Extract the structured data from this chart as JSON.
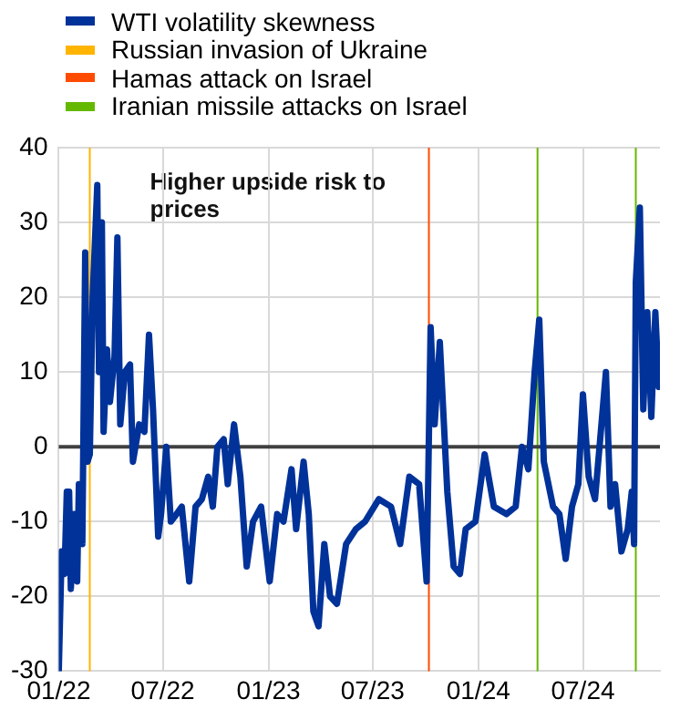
{
  "chart_data": {
    "type": "line",
    "annotations": [
      "Higher upside risk to prices"
    ],
    "x": [
      "2022-01-01",
      "2022-01-06",
      "2022-01-11",
      "2022-01-15",
      "2022-01-19",
      "2022-01-22",
      "2022-01-28",
      "2022-02-02",
      "2022-02-05",
      "2022-02-11",
      "2022-02-16",
      "2022-02-20",
      "2022-02-24",
      "2022-03-01",
      "2022-03-09",
      "2022-03-12",
      "2022-03-17",
      "2022-03-20",
      "2022-03-26",
      "2022-03-31",
      "2022-04-08",
      "2022-04-13",
      "2022-04-18",
      "2022-04-26",
      "2022-05-05",
      "2022-05-10",
      "2022-05-21",
      "2022-05-30",
      "2022-06-07",
      "2022-06-14",
      "2022-06-23",
      "2022-06-28",
      "2022-07-07",
      "2022-07-15",
      "2022-07-25",
      "2022-08-03",
      "2022-08-16",
      "2022-08-27",
      "2022-09-07",
      "2022-09-18",
      "2022-09-26",
      "2022-10-04",
      "2022-10-15",
      "2022-10-22",
      "2022-11-02",
      "2022-11-13",
      "2022-11-24",
      "2022-12-05",
      "2022-12-19",
      "2023-01-03",
      "2023-01-16",
      "2023-01-27",
      "2023-02-10",
      "2023-02-18",
      "2023-03-03",
      "2023-03-12",
      "2023-03-20",
      "2023-03-29",
      "2023-04-08",
      "2023-04-18",
      "2023-04-30",
      "2023-05-16",
      "2023-06-02",
      "2023-06-18",
      "2023-07-12",
      "2023-08-02",
      "2023-08-18",
      "2023-09-03",
      "2023-09-20",
      "2023-10-03",
      "2023-10-10",
      "2023-10-17",
      "2023-10-26",
      "2023-11-08",
      "2023-11-19",
      "2023-11-30",
      "2023-12-10",
      "2023-12-27",
      "2024-01-12",
      "2024-01-28",
      "2024-02-19",
      "2024-03-06",
      "2024-03-17",
      "2024-03-28",
      "2024-04-08",
      "2024-04-16",
      "2024-04-24",
      "2024-05-10",
      "2024-05-21",
      "2024-06-01",
      "2024-06-12",
      "2024-06-23",
      "2024-07-01",
      "2024-07-11",
      "2024-07-22",
      "2024-07-31",
      "2024-08-10",
      "2024-08-18",
      "2024-08-26",
      "2024-09-06",
      "2024-09-17",
      "2024-09-24",
      "2024-09-28",
      "2024-10-01",
      "2024-10-08",
      "2024-10-14",
      "2024-10-21",
      "2024-10-28",
      "2024-11-04",
      "2024-11-10"
    ],
    "series": [
      {
        "name": "WTI volatility skewness",
        "color": "#003299",
        "values": [
          -30,
          -14,
          -17,
          -6,
          -6,
          -19,
          -9,
          -18,
          -5,
          -13,
          26,
          -2,
          -1,
          20,
          35,
          10,
          30,
          2,
          13,
          6,
          12,
          28,
          3,
          10,
          11,
          -2,
          3,
          2,
          15,
          5,
          -12,
          -9,
          0,
          -10,
          -9,
          -8,
          -18,
          -8,
          -7,
          -4,
          -8,
          0,
          1,
          -5,
          3,
          -4,
          -16,
          -10,
          -8,
          -18,
          -9,
          -10,
          -3,
          -11,
          -2,
          -9,
          -22,
          -24,
          -13,
          -20,
          -21,
          -13,
          -11,
          -10,
          -7,
          -8,
          -13,
          -4,
          -5,
          -18,
          16,
          3,
          14,
          -6,
          -16,
          -17,
          -11,
          -10,
          -1,
          -8,
          -9,
          -8,
          0,
          -3,
          10,
          17,
          -2,
          -8,
          -9,
          -15,
          -8,
          -5,
          7,
          -4,
          -7,
          1,
          10,
          -8,
          -5,
          -14,
          -11,
          -6,
          -13,
          22,
          32,
          5,
          18,
          4,
          18,
          8
        ]
      }
    ],
    "ref_lines": [
      {
        "axis": "x",
        "value": "2022-02-24",
        "label": "Russian invasion of Ukraine",
        "color": "#ffb400"
      },
      {
        "axis": "x",
        "value": "2023-10-07",
        "label": "Hamas attack on Israel",
        "color": "#ff4b00"
      },
      {
        "axis": "x",
        "value": "2024-04-13",
        "label": "Iranian missile attacks on Israel",
        "color": "#65b800"
      },
      {
        "axis": "x",
        "value": "2024-10-01",
        "color": "#65b800"
      },
      {
        "axis": "y",
        "value": 0,
        "color": "#404040"
      }
    ],
    "xlim": [
      "2022-01-01",
      "2024-11-12"
    ],
    "xticks": [
      {
        "value": "2022-01-01",
        "label": "01/22"
      },
      {
        "value": "2022-07-01",
        "label": "07/22"
      },
      {
        "value": "2023-01-01",
        "label": "01/23"
      },
      {
        "value": "2023-07-01",
        "label": "07/23"
      },
      {
        "value": "2024-01-01",
        "label": "01/24"
      },
      {
        "value": "2024-07-01",
        "label": "07/24"
      }
    ],
    "ylim": [
      -30,
      40
    ],
    "yticks": [
      -30,
      -20,
      -10,
      0,
      10,
      20,
      30,
      40
    ],
    "grid": true,
    "legend": "top",
    "marker": "none",
    "line_style": "solid"
  }
}
